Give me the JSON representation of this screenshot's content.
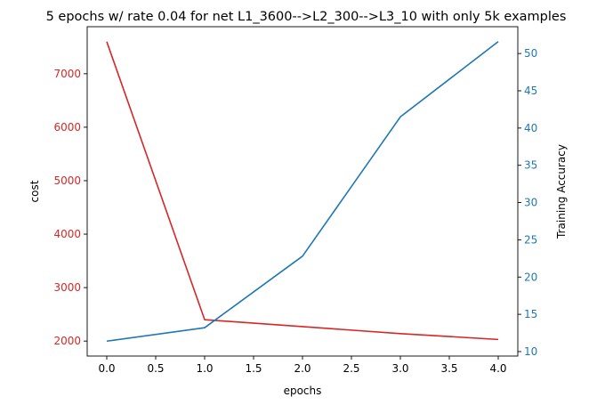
{
  "chart_data": {
    "type": "line",
    "title": "5 epochs w/ rate 0.04 for net L1_3600-->L2_300-->L3_10 with only 5k examples",
    "xlabel": "epochs",
    "x": [
      0,
      1,
      2,
      3,
      4
    ],
    "xlim": [
      -0.2,
      4.2
    ],
    "xticks": [
      "0.0",
      "0.5",
      "1.0",
      "1.5",
      "2.0",
      "2.5",
      "3.0",
      "3.5",
      "4.0"
    ],
    "xtick_values": [
      0,
      0.5,
      1,
      1.5,
      2,
      2.5,
      3,
      3.5,
      4
    ],
    "grid": false,
    "axes": {
      "left": {
        "label": "cost",
        "color": "#d62728",
        "ylim": [
          1720,
          7880
        ],
        "ticks": [
          2000,
          3000,
          4000,
          5000,
          6000,
          7000
        ]
      },
      "right": {
        "label": "Training Accuracy",
        "color": "#1f77b4",
        "ylim": [
          9.4,
          53.6
        ],
        "ticks": [
          10,
          15,
          20,
          25,
          30,
          35,
          40,
          45,
          50
        ]
      }
    },
    "series": [
      {
        "axis": "left",
        "color": "#d62728",
        "values": [
          7600,
          2400,
          2270,
          2140,
          2030
        ]
      },
      {
        "axis": "right",
        "color": "#1f77b4",
        "values": [
          11.4,
          13.2,
          22.8,
          41.5,
          51.6
        ]
      }
    ]
  }
}
